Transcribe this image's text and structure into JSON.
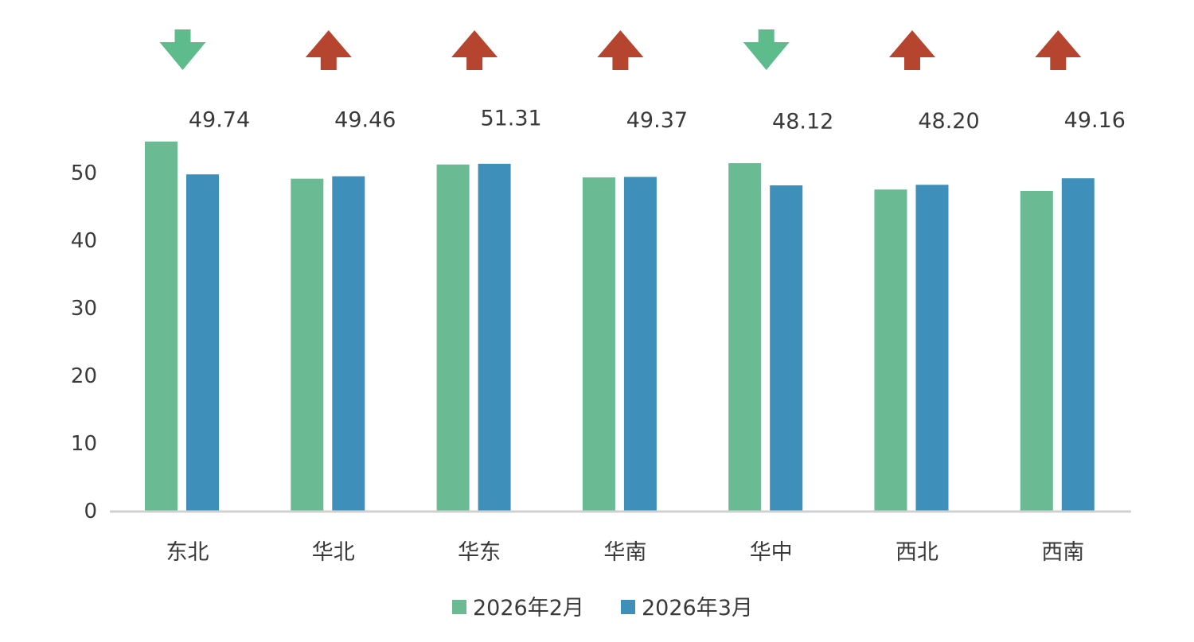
{
  "chart_data": {
    "type": "bar",
    "categories": [
      "东北",
      "华北",
      "华东",
      "华南",
      "华中",
      "西北",
      "西南"
    ],
    "series": [
      {
        "name": "2026年2月",
        "color": "#6aba93",
        "values": [
          54.6,
          49.1,
          51.2,
          49.3,
          51.4,
          47.5,
          47.3
        ]
      },
      {
        "name": "2026年3月",
        "color": "#3e8fb9",
        "values": [
          49.74,
          49.46,
          51.31,
          49.37,
          48.12,
          48.2,
          49.16
        ]
      }
    ],
    "data_labels": [
      "49.74",
      "49.46",
      "51.31",
      "49.37",
      "48.12",
      "48.20",
      "49.16"
    ],
    "trend": [
      "down",
      "up",
      "up",
      "up",
      "down",
      "up",
      "up"
    ],
    "trend_colors": {
      "up": "#b5452f",
      "down": "#5dbb8c"
    },
    "y_ticks": [
      "0",
      "10",
      "20",
      "30",
      "40",
      "50"
    ],
    "ylim": [
      0,
      55
    ],
    "grid": false,
    "legend_position": "bottom",
    "title": "",
    "xlabel": "",
    "ylabel": ""
  }
}
